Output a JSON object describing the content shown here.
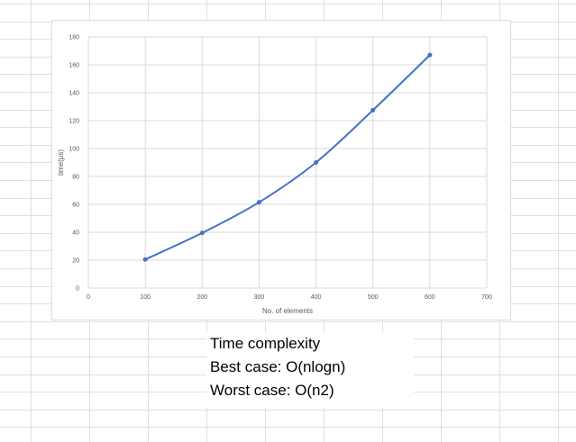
{
  "notes": {
    "line1": "Time complexity",
    "line2": "Best case: O(nlogn)",
    "line3": "Worst case: O(n2)"
  },
  "colors": {
    "series": "#4472c4",
    "gridlines": "#d9d9d9",
    "sheet_grid": "#e0e0e0",
    "text": "#595959"
  },
  "chart_data": {
    "type": "scatter",
    "title": "",
    "xlabel": "No. of elements",
    "ylabel": "time(µs)",
    "xlim": [
      0,
      700
    ],
    "ylim": [
      0,
      180
    ],
    "xticks": [
      0,
      100,
      200,
      300,
      400,
      500,
      600,
      700
    ],
    "yticks": [
      0,
      20,
      40,
      60,
      80,
      100,
      120,
      140,
      160,
      180
    ],
    "grid": true,
    "smooth_line": true,
    "series": [
      {
        "x": [
          100,
          200,
          300,
          400,
          500,
          600
        ],
        "y": [
          20.5,
          39.5,
          61.5,
          90,
          127.5,
          167
        ]
      }
    ]
  }
}
